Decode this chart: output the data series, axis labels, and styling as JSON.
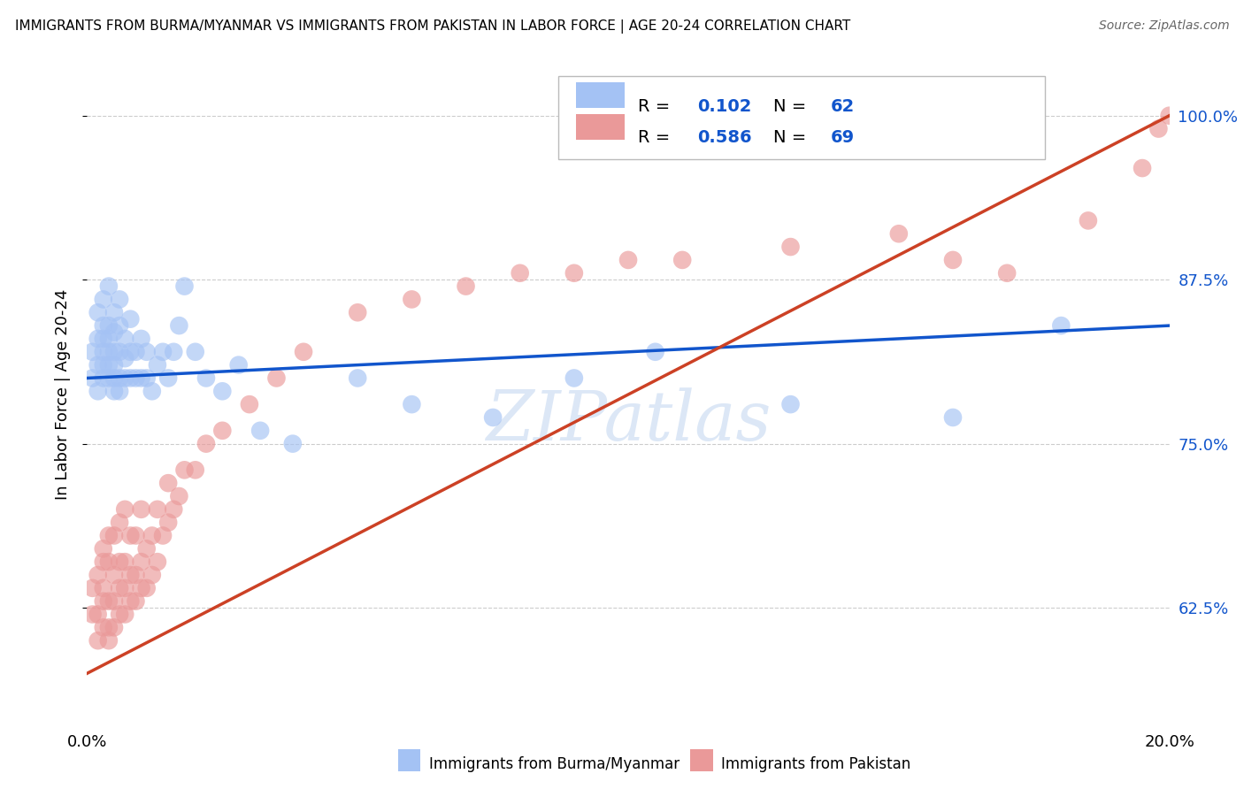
{
  "title": "IMMIGRANTS FROM BURMA/MYANMAR VS IMMIGRANTS FROM PAKISTAN IN LABOR FORCE | AGE 20-24 CORRELATION CHART",
  "source": "Source: ZipAtlas.com",
  "ylabel": "In Labor Force | Age 20-24",
  "xlim": [
    0.0,
    0.2
  ],
  "ylim": [
    0.535,
    1.04
  ],
  "yticks": [
    0.625,
    0.75,
    0.875,
    1.0
  ],
  "ytick_labels": [
    "62.5%",
    "75.0%",
    "87.5%",
    "100.0%"
  ],
  "xticks": [
    0.0,
    0.05,
    0.1,
    0.15,
    0.2
  ],
  "xtick_labels": [
    "0.0%",
    "",
    "",
    "",
    "20.0%"
  ],
  "blue_R": 0.102,
  "blue_N": 62,
  "pink_R": 0.586,
  "pink_N": 69,
  "blue_color": "#a4c2f4",
  "pink_color": "#ea9999",
  "blue_line_color": "#1155cc",
  "pink_line_color": "#cc4125",
  "blue_text_color": "#1155cc",
  "watermark_text": "ZIPatlas",
  "legend_label_blue": "Immigrants from Burma/Myanmar",
  "legend_label_pink": "Immigrants from Pakistan",
  "blue_x": [
    0.001,
    0.001,
    0.002,
    0.002,
    0.002,
    0.002,
    0.003,
    0.003,
    0.003,
    0.003,
    0.003,
    0.003,
    0.004,
    0.004,
    0.004,
    0.004,
    0.004,
    0.004,
    0.005,
    0.005,
    0.005,
    0.005,
    0.005,
    0.005,
    0.006,
    0.006,
    0.006,
    0.006,
    0.006,
    0.007,
    0.007,
    0.007,
    0.008,
    0.008,
    0.008,
    0.009,
    0.009,
    0.01,
    0.01,
    0.011,
    0.011,
    0.012,
    0.013,
    0.014,
    0.015,
    0.016,
    0.017,
    0.018,
    0.02,
    0.022,
    0.025,
    0.028,
    0.032,
    0.038,
    0.05,
    0.06,
    0.075,
    0.09,
    0.105,
    0.13,
    0.16,
    0.18
  ],
  "blue_y": [
    0.8,
    0.82,
    0.79,
    0.81,
    0.83,
    0.85,
    0.8,
    0.81,
    0.82,
    0.83,
    0.84,
    0.86,
    0.8,
    0.81,
    0.82,
    0.83,
    0.84,
    0.87,
    0.79,
    0.8,
    0.81,
    0.82,
    0.835,
    0.85,
    0.79,
    0.8,
    0.82,
    0.84,
    0.86,
    0.8,
    0.815,
    0.83,
    0.8,
    0.82,
    0.845,
    0.8,
    0.82,
    0.8,
    0.83,
    0.8,
    0.82,
    0.79,
    0.81,
    0.82,
    0.8,
    0.82,
    0.84,
    0.87,
    0.82,
    0.8,
    0.79,
    0.81,
    0.76,
    0.75,
    0.8,
    0.78,
    0.77,
    0.8,
    0.82,
    0.78,
    0.77,
    0.84
  ],
  "pink_x": [
    0.001,
    0.001,
    0.002,
    0.002,
    0.002,
    0.003,
    0.003,
    0.003,
    0.003,
    0.003,
    0.004,
    0.004,
    0.004,
    0.004,
    0.004,
    0.005,
    0.005,
    0.005,
    0.005,
    0.006,
    0.006,
    0.006,
    0.006,
    0.007,
    0.007,
    0.007,
    0.007,
    0.008,
    0.008,
    0.008,
    0.009,
    0.009,
    0.009,
    0.01,
    0.01,
    0.01,
    0.011,
    0.011,
    0.012,
    0.012,
    0.013,
    0.013,
    0.014,
    0.015,
    0.015,
    0.016,
    0.017,
    0.018,
    0.02,
    0.022,
    0.025,
    0.03,
    0.035,
    0.04,
    0.05,
    0.06,
    0.07,
    0.08,
    0.09,
    0.1,
    0.11,
    0.13,
    0.15,
    0.16,
    0.17,
    0.185,
    0.195,
    0.198,
    0.2
  ],
  "pink_y": [
    0.62,
    0.64,
    0.6,
    0.62,
    0.65,
    0.61,
    0.63,
    0.64,
    0.66,
    0.67,
    0.6,
    0.61,
    0.63,
    0.66,
    0.68,
    0.61,
    0.63,
    0.65,
    0.68,
    0.62,
    0.64,
    0.66,
    0.69,
    0.62,
    0.64,
    0.66,
    0.7,
    0.63,
    0.65,
    0.68,
    0.63,
    0.65,
    0.68,
    0.64,
    0.66,
    0.7,
    0.64,
    0.67,
    0.65,
    0.68,
    0.66,
    0.7,
    0.68,
    0.69,
    0.72,
    0.7,
    0.71,
    0.73,
    0.73,
    0.75,
    0.76,
    0.78,
    0.8,
    0.82,
    0.85,
    0.86,
    0.87,
    0.88,
    0.88,
    0.89,
    0.89,
    0.9,
    0.91,
    0.89,
    0.88,
    0.92,
    0.96,
    0.99,
    1.0
  ],
  "background_color": "#ffffff",
  "grid_color": "#cccccc"
}
